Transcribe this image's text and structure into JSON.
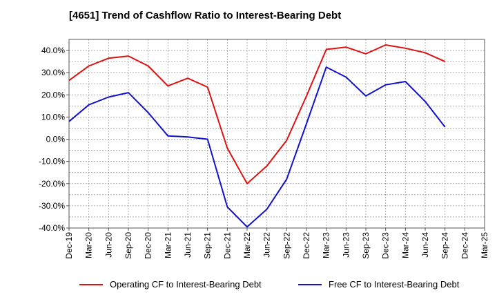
{
  "title": "[4651]  Trend of Cashflow Ratio to Interest-Bearing Debt",
  "chart_data": {
    "type": "line",
    "title": "[4651]  Trend of Cashflow Ratio to Interest-Bearing Debt",
    "categories": [
      "Dec-19",
      "Mar-20",
      "Jun-20",
      "Sep-20",
      "Dec-20",
      "Mar-21",
      "Jun-21",
      "Sep-21",
      "Dec-21",
      "Mar-22",
      "Jun-22",
      "Sep-22",
      "Dec-22",
      "Mar-23",
      "Jun-23",
      "Sep-23",
      "Dec-23",
      "Mar-24",
      "Jun-24",
      "Sep-24",
      "Dec-24",
      "Mar-25"
    ],
    "y_ticks": [
      "40.0%",
      "30.0%",
      "20.0%",
      "10.0%",
      "0.0%",
      "-10.0%",
      "-20.0%",
      "-30.0%",
      "-40.0%"
    ],
    "ylim": [
      -40,
      45
    ],
    "grid": true,
    "legend_position": "bottom",
    "series": [
      {
        "name": "Operating CF to Interest-Bearing Debt",
        "color": "#dd1111",
        "values": [
          26.5,
          33.0,
          36.5,
          37.5,
          33.0,
          24.0,
          27.5,
          23.5,
          -4.0,
          -20.0,
          -12.0,
          -0.5,
          19.5,
          40.5,
          41.5,
          38.5,
          42.5,
          41.0,
          39.0,
          35.0,
          null,
          null
        ]
      },
      {
        "name": "Free CF to Interest-Bearing Debt",
        "color": "#1111cc",
        "values": [
          8.0,
          15.5,
          19.0,
          21.0,
          12.0,
          1.5,
          1.0,
          0.0,
          -30.5,
          -39.5,
          -31.5,
          -18.0,
          7.0,
          32.5,
          28.0,
          19.5,
          24.5,
          26.0,
          17.0,
          5.5,
          null,
          null
        ]
      }
    ]
  }
}
